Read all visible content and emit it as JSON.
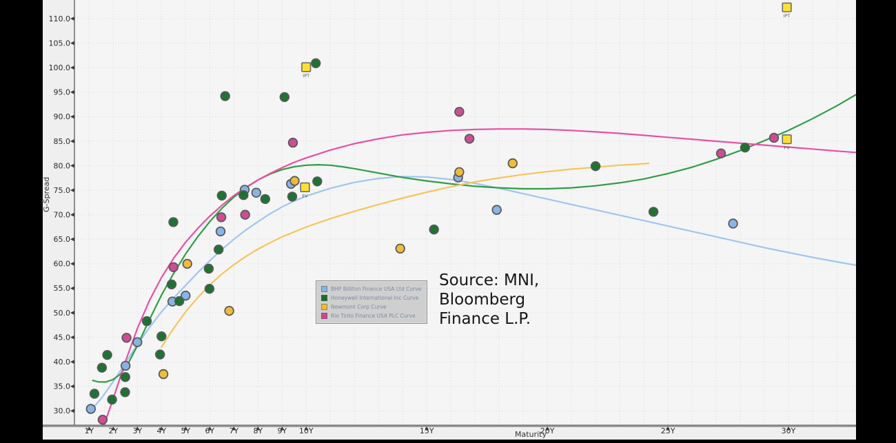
{
  "annotation": {
    "lines": [
      "Source: MNI,",
      "Bloomberg",
      "Finance L.P."
    ]
  },
  "colors": {
    "panel_bg": "#efefef",
    "plot_bg": "#f5f5f6",
    "grid": "#d6d6d8",
    "axis_line": "#9b9b9b",
    "axis_text": "#2a2a2a",
    "marker_square_fill": "#ffe033",
    "marker_square_stroke": "#6b6b6b",
    "point_stroke": "#58595b"
  },
  "chart_data": {
    "type": "scatter",
    "title": "",
    "xlabel": "Maturity",
    "ylabel": "G-Spread",
    "xlim": [
      0.39,
      32.8
    ],
    "ylim": [
      27.1,
      113.8
    ],
    "grid": true,
    "legend_position": "center-left",
    "x_ticks": [
      1,
      2,
      3,
      4,
      5,
      6,
      7,
      8,
      9,
      10,
      15,
      20,
      25,
      30
    ],
    "x_tick_labels": [
      "1Y",
      "2Y",
      "3Y",
      "4Y",
      "5Y",
      "6Y",
      "7Y",
      "8Y",
      "9Y",
      "10Y",
      "15Y",
      "20Y",
      "25Y",
      "30Y"
    ],
    "x_minor_ticks_every": 1,
    "y_ticks": [
      30,
      35,
      40,
      45,
      50,
      55,
      60,
      65,
      70,
      75,
      80,
      85,
      90,
      95,
      100,
      105,
      110
    ],
    "y_tick_labels": [
      "30.0",
      "35.0",
      "40.0",
      "45.0",
      "50.0",
      "55.0",
      "60.0",
      "65.0",
      "70.0",
      "75.0",
      "80.0",
      "85.0",
      "90.0",
      "95.0",
      "100.0",
      "105.0",
      "110.0"
    ],
    "series": [
      {
        "key": "bhp",
        "name": "BHP Billiton Finance USA Ltd Curve",
        "point_color": "#85b3e4",
        "curve_color": "#9fc5f0",
        "points": [
          [
            1.07,
            30.4
          ],
          [
            2.51,
            39.2
          ],
          [
            3.0,
            44.0
          ],
          [
            4.45,
            52.3
          ],
          [
            5.0,
            53.5
          ],
          [
            6.45,
            66.6
          ],
          [
            7.45,
            75.1
          ],
          [
            7.93,
            74.5
          ],
          [
            9.37,
            76.3
          ],
          [
            16.3,
            77.6
          ],
          [
            17.9,
            71.0
          ],
          [
            27.7,
            68.2
          ]
        ],
        "curve": [
          [
            0.97,
            29.5
          ],
          [
            1.5,
            32.5
          ],
          [
            2,
            36
          ],
          [
            2.5,
            39.7
          ],
          [
            3,
            43.5
          ],
          [
            3.5,
            47
          ],
          [
            4,
            50.2
          ],
          [
            4.5,
            53
          ],
          [
            5,
            55.6
          ],
          [
            5.5,
            58.2
          ],
          [
            6,
            60.6
          ],
          [
            6.5,
            62.9
          ],
          [
            7,
            65
          ],
          [
            7.5,
            66.9
          ],
          [
            8,
            68.6
          ],
          [
            8.5,
            70.2
          ],
          [
            9,
            71.6
          ],
          [
            9.5,
            72.8
          ],
          [
            10,
            73.8
          ],
          [
            11,
            75.4
          ],
          [
            12,
            76.6
          ],
          [
            13,
            77.4
          ],
          [
            14,
            77.8
          ],
          [
            15,
            77.7
          ],
          [
            16,
            77.2
          ],
          [
            17,
            76.4
          ],
          [
            18,
            75.4
          ],
          [
            19,
            74.3
          ],
          [
            20,
            73.2
          ],
          [
            21,
            72.1
          ],
          [
            22,
            71
          ],
          [
            23,
            69.9
          ],
          [
            24,
            68.8
          ],
          [
            25,
            67.7
          ],
          [
            26,
            66.6
          ],
          [
            27,
            65.5
          ],
          [
            28,
            64.4
          ],
          [
            29,
            63.3
          ],
          [
            30,
            62.3
          ],
          [
            31,
            61.3
          ],
          [
            32,
            60.4
          ],
          [
            32.8,
            59.7
          ]
        ]
      },
      {
        "key": "honeywell",
        "name": "Honeywell International Inc Curve",
        "point_color": "#16702a",
        "curve_color": "#2f9e44",
        "points": [
          [
            1.22,
            33.5
          ],
          [
            1.53,
            38.8
          ],
          [
            1.75,
            41.4
          ],
          [
            1.95,
            32.3
          ],
          [
            2.49,
            33.8
          ],
          [
            2.5,
            36.9
          ],
          [
            3.39,
            48.3
          ],
          [
            3.94,
            41.5
          ],
          [
            4.0,
            45.2
          ],
          [
            4.42,
            55.8
          ],
          [
            4.49,
            68.5
          ],
          [
            4.74,
            52.4
          ],
          [
            5.96,
            59.0
          ],
          [
            5.99,
            54.9
          ],
          [
            6.37,
            62.9
          ],
          [
            6.5,
            73.9
          ],
          [
            6.64,
            94.2
          ],
          [
            7.4,
            74.0
          ],
          [
            8.3,
            73.2
          ],
          [
            9.1,
            94.0
          ],
          [
            9.42,
            73.7
          ],
          [
            10.4,
            100.9
          ],
          [
            10.46,
            76.8
          ],
          [
            15.3,
            67.0
          ],
          [
            22.0,
            79.9
          ],
          [
            24.4,
            70.6
          ],
          [
            28.2,
            83.7
          ]
        ],
        "curve": [
          [
            1.15,
            36.2
          ],
          [
            1.4,
            35.9
          ],
          [
            1.7,
            35.9
          ],
          [
            2,
            36.4
          ],
          [
            2.3,
            37.5
          ],
          [
            2.6,
            39.5
          ],
          [
            3,
            43.3
          ],
          [
            3.5,
            48.6
          ],
          [
            4,
            53.6
          ],
          [
            4.5,
            58
          ],
          [
            5,
            62
          ],
          [
            5.5,
            65.5
          ],
          [
            6,
            68.6
          ],
          [
            6.5,
            71.3
          ],
          [
            7,
            73.6
          ],
          [
            7.5,
            75.5
          ],
          [
            8,
            77.1
          ],
          [
            8.5,
            78.3
          ],
          [
            9,
            79.2
          ],
          [
            9.5,
            79.8
          ],
          [
            10,
            80.1
          ],
          [
            10.5,
            80.2
          ],
          [
            11,
            80.1
          ],
          [
            11.5,
            79.8
          ],
          [
            12,
            79.4
          ],
          [
            13,
            78.5
          ],
          [
            14,
            77.6
          ],
          [
            15,
            76.9
          ],
          [
            16,
            76.3
          ],
          [
            17,
            75.8
          ],
          [
            18,
            75.5
          ],
          [
            19,
            75.3
          ],
          [
            20,
            75.3
          ],
          [
            21,
            75.5
          ],
          [
            22,
            75.9
          ],
          [
            23,
            76.5
          ],
          [
            24,
            77.3
          ],
          [
            25,
            78.4
          ],
          [
            26,
            79.7
          ],
          [
            27,
            81.3
          ],
          [
            28,
            83.1
          ],
          [
            29,
            85.1
          ],
          [
            30,
            87.2
          ],
          [
            31,
            89.6
          ],
          [
            32,
            92.2
          ],
          [
            32.8,
            94.5
          ]
        ]
      },
      {
        "key": "newmont",
        "name": "Newmont Corp Curve",
        "point_color": "#f0ba33",
        "curve_color": "#f6c45a",
        "points": [
          [
            4.08,
            37.5
          ],
          [
            5.07,
            60.0
          ],
          [
            6.81,
            50.4
          ],
          [
            9.52,
            76.9
          ],
          [
            13.9,
            63.1
          ],
          [
            16.35,
            78.7
          ],
          [
            18.56,
            80.5
          ]
        ],
        "curve": [
          [
            4,
            43
          ],
          [
            4.5,
            46.8
          ],
          [
            5,
            50.2
          ],
          [
            5.5,
            53.1
          ],
          [
            6,
            55.7
          ],
          [
            6.5,
            57.9
          ],
          [
            7,
            59.8
          ],
          [
            7.5,
            61.5
          ],
          [
            8,
            63
          ],
          [
            8.5,
            64.3
          ],
          [
            9,
            65.5
          ],
          [
            9.5,
            66.5
          ],
          [
            10,
            67.5
          ],
          [
            11,
            69.2
          ],
          [
            12,
            70.7
          ],
          [
            13,
            72.1
          ],
          [
            14,
            73.4
          ],
          [
            15,
            74.6
          ],
          [
            16,
            75.7
          ],
          [
            17,
            76.7
          ],
          [
            18,
            77.5
          ],
          [
            19,
            78.2
          ],
          [
            20,
            78.8
          ],
          [
            21,
            79.3
          ],
          [
            22,
            79.7
          ],
          [
            23,
            80.1
          ],
          [
            24,
            80.4
          ],
          [
            24.2,
            80.5
          ]
        ]
      },
      {
        "key": "rio",
        "name": "Rio Tinto Finance USA PLC Curve",
        "point_color": "#cc4791",
        "curve_color": "#ea4fa0",
        "points": [
          [
            1.56,
            28.2
          ],
          [
            2.55,
            44.9
          ],
          [
            4.5,
            59.3
          ],
          [
            6.48,
            69.5
          ],
          [
            7.47,
            70.0
          ],
          [
            9.45,
            84.7
          ],
          [
            16.35,
            91.0
          ],
          [
            16.77,
            85.5
          ],
          [
            27.2,
            82.5
          ],
          [
            29.4,
            85.7
          ]
        ],
        "curve": [
          [
            1.45,
            24.5
          ],
          [
            1.75,
            29
          ],
          [
            2,
            32.5
          ],
          [
            2.5,
            40
          ],
          [
            3,
            46.8
          ],
          [
            3.5,
            52.5
          ],
          [
            4,
            57.2
          ],
          [
            4.5,
            61.1
          ],
          [
            5,
            64.4
          ],
          [
            5.5,
            67.2
          ],
          [
            6,
            69.7
          ],
          [
            6.5,
            71.9
          ],
          [
            7,
            73.9
          ],
          [
            7.5,
            75.6
          ],
          [
            8,
            77.1
          ],
          [
            8.5,
            78.4
          ],
          [
            9,
            79.6
          ],
          [
            9.5,
            80.7
          ],
          [
            10,
            81.6
          ],
          [
            11,
            83.2
          ],
          [
            12,
            84.5
          ],
          [
            13,
            85.5
          ],
          [
            14,
            86.3
          ],
          [
            15,
            86.8
          ],
          [
            16,
            87.2
          ],
          [
            17,
            87.4
          ],
          [
            18,
            87.5
          ],
          [
            19,
            87.5
          ],
          [
            20,
            87.4
          ],
          [
            21,
            87.2
          ],
          [
            22,
            86.9
          ],
          [
            23,
            86.6
          ],
          [
            24,
            86.2
          ],
          [
            25,
            85.8
          ],
          [
            26,
            85.4
          ],
          [
            27,
            85
          ],
          [
            28,
            84.6
          ],
          [
            29,
            84.2
          ],
          [
            30,
            83.8
          ],
          [
            31,
            83.4
          ],
          [
            32,
            83
          ],
          [
            32.8,
            82.7
          ]
        ]
      }
    ],
    "issue_markers": [
      {
        "label": "IPT",
        "x": 10.0,
        "y": 100.1
      },
      {
        "label": "FV",
        "x": 9.95,
        "y": 75.6
      },
      {
        "label": "IPT",
        "x": 29.93,
        "y": 112.3
      },
      {
        "label": "FV",
        "x": 29.93,
        "y": 85.4
      }
    ]
  }
}
